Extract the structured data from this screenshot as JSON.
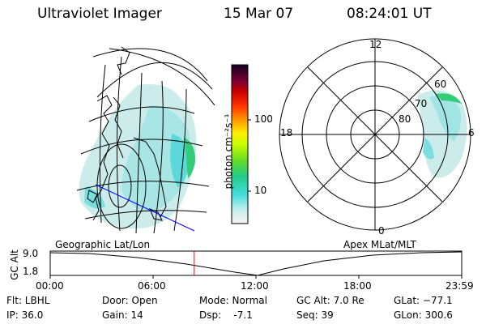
{
  "header": {
    "title": "Ultraviolet Imager",
    "date": "15 Mar 07",
    "time": "08:24:01 UT"
  },
  "colorbar": {
    "label": "photon cm⁻²s⁻¹",
    "ticks": [
      "100",
      "10"
    ]
  },
  "polar": {
    "mlt_labels": {
      "top": "12",
      "left": "18",
      "right": "6",
      "bottom": "0"
    },
    "lat_labels": [
      "60",
      "70",
      "80"
    ]
  },
  "panel_labels": {
    "left": "Geographic Lat/Lon",
    "right": "Apex MLat/MLT"
  },
  "altitude_plot": {
    "ylabel": "GC Alt",
    "yticks": [
      "9.0",
      "1.8"
    ],
    "xticks": [
      "00:00",
      "06:00",
      "12:00",
      "18:00",
      "23:59"
    ],
    "current_time_hours": 8.4
  },
  "footer": {
    "flt": "Flt: LBHL",
    "ip": "IP: 36.0",
    "door": "Door: Open",
    "gain": "Gain: 14",
    "mode": "Mode: Normal",
    "dsp": "Dsp:    -7.1",
    "gcalt": "GC Alt: 7.0 Re",
    "seq": "Seq: 39",
    "glat": "GLat: −77.1",
    "glon": "GLon: 300.6"
  }
}
